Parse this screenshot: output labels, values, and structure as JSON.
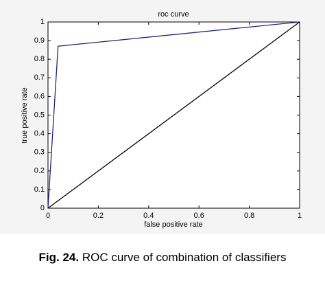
{
  "chart_data": {
    "type": "line",
    "title": "roc curve",
    "xlabel": "false positive rate",
    "ylabel": "true positive rate",
    "series": [
      {
        "color": "#23237a",
        "x": [
          0,
          0.04,
          1
        ],
        "values": [
          0,
          0.87,
          1
        ]
      },
      {
        "color": "#000000",
        "x": [
          0,
          1
        ],
        "values": [
          0,
          1
        ]
      }
    ],
    "xlim": [
      0,
      1
    ],
    "xticks": [
      0,
      0.2,
      0.4,
      0.6,
      0.8,
      1
    ],
    "ylim": [
      0,
      1
    ],
    "yticks": [
      0,
      0.1,
      0.2,
      0.3,
      0.4,
      0.5,
      0.6,
      0.7,
      0.8,
      0.9,
      1
    ],
    "grid": false
  },
  "caption": {
    "label": "Fig. 24.",
    "text": "ROC curve of combination of classifiers"
  }
}
